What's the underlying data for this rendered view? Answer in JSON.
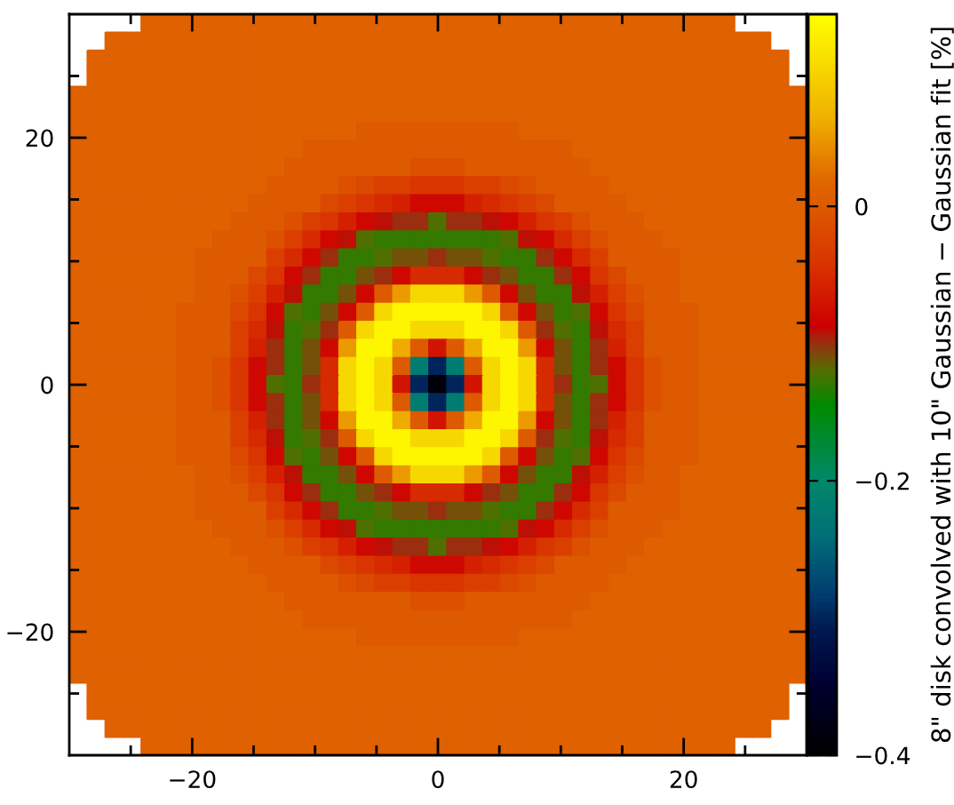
{
  "chart_data": {
    "type": "heatmap",
    "clabel": "8\" disk convolved with 10\" Gaussian − Gaussian fit [%]",
    "xlim": [
      -30,
      30
    ],
    "ylim": [
      -30,
      30
    ],
    "xticks": [
      {
        "value": -25,
        "label": null
      },
      -20,
      {
        "value": -15,
        "label": null
      },
      {
        "value": -10,
        "label": null
      },
      {
        "value": -5,
        "label": null
      },
      0,
      {
        "value": 5,
        "label": null
      },
      {
        "value": 10,
        "label": null
      },
      {
        "value": 15,
        "label": null
      },
      20,
      {
        "value": 25,
        "label": null
      }
    ],
    "yticks": [
      {
        "value": -25,
        "label": null
      },
      -20,
      {
        "value": -15,
        "label": null
      },
      {
        "value": -10,
        "label": null
      },
      {
        "value": -5,
        "label": null
      },
      0,
      {
        "value": 5,
        "label": null
      },
      {
        "value": 10,
        "label": null
      },
      {
        "value": 15,
        "label": null
      },
      20,
      {
        "value": 25,
        "label": null
      }
    ],
    "clim": [
      -0.4,
      0.14
    ],
    "cticks": [
      0,
      -0.2,
      -0.4
    ],
    "cells": [
      [
        null,
        null,
        null,
        null,
        0.01,
        0.01,
        0.01,
        0.01,
        0.01,
        0.01,
        0.01,
        0.01,
        0.01,
        0.01,
        0.01,
        0.01,
        0.01,
        0.01,
        0.01,
        0.01,
        0.01,
        0.01,
        0.01,
        0.01,
        0.01,
        0.01,
        0.01,
        0.01,
        0.01,
        0.01,
        0.01,
        0.01,
        0.01,
        0.01,
        0.01,
        0.01,
        0.01,
        null,
        null,
        null,
        null
      ],
      [
        null,
        null,
        0.01,
        0.01,
        0.01,
        0.01,
        0.01,
        0.01,
        0.01,
        0.01,
        0.01,
        0.01,
        0.01,
        0.01,
        0.01,
        0.01,
        0.01,
        0.01,
        0.01,
        0.01,
        0.01,
        0.01,
        0.01,
        0.01,
        0.01,
        0.01,
        0.01,
        0.01,
        0.01,
        0.01,
        0.01,
        0.01,
        0.01,
        0.01,
        0.01,
        0.01,
        0.01,
        0.01,
        0.01,
        null,
        null
      ],
      [
        null,
        0.01,
        0.01,
        0.01,
        0.01,
        0.01,
        0.01,
        0.01,
        0.01,
        0.01,
        0.01,
        0.01,
        0.01,
        0.01,
        0.01,
        0.01,
        0.01,
        0.01,
        0.01,
        0.01,
        0.01,
        0.01,
        0.01,
        0.01,
        0.01,
        0.01,
        0.01,
        0.01,
        0.01,
        0.01,
        0.01,
        0.01,
        0.01,
        0.01,
        0.01,
        0.01,
        0.01,
        0.01,
        0.01,
        0.01,
        null
      ],
      [
        null,
        0.01,
        0.01,
        0.01,
        0.01,
        0.01,
        0.01,
        0.01,
        0.01,
        0.01,
        0.01,
        0.01,
        0.01,
        0.01,
        0.01,
        0.01,
        0.01,
        0.01,
        0.01,
        0.01,
        0.01,
        0.01,
        0.01,
        0.01,
        0.01,
        0.01,
        0.01,
        0.01,
        0.01,
        0.01,
        0.01,
        0.01,
        0.01,
        0.01,
        0.01,
        0.01,
        0.01,
        0.01,
        0.01,
        0.01,
        null
      ],
      [
        0.01,
        0.01,
        0.01,
        0.01,
        0.01,
        0.01,
        0.01,
        0.01,
        0.01,
        0.01,
        0.01,
        0.01,
        0.01,
        0.01,
        0.01,
        0.01,
        0.01,
        0.01,
        0.01,
        0.01,
        0.01,
        0.01,
        0.01,
        0.01,
        0.01,
        0.01,
        0.01,
        0.01,
        0.01,
        0.01,
        0.01,
        0.01,
        0.01,
        0.01,
        0.01,
        0.01,
        0.01,
        0.01,
        0.01,
        0.01,
        0.01
      ],
      [
        0.01,
        0.01,
        0.01,
        0.01,
        0.01,
        0.01,
        0.01,
        0.01,
        0.01,
        0.01,
        0.01,
        0.01,
        0.01,
        0.01,
        0.01,
        0.01,
        0.01,
        0.01,
        0.01,
        0.01,
        0.01,
        0.01,
        0.01,
        0.01,
        0.01,
        0.01,
        0.01,
        0.01,
        0.01,
        0.01,
        0.01,
        0.01,
        0.01,
        0.01,
        0.01,
        0.01,
        0.01,
        0.01,
        0.01,
        0.01,
        0.01
      ],
      [
        0.01,
        0.01,
        0.01,
        0.01,
        0.01,
        0.01,
        0.01,
        0.01,
        0.01,
        0.01,
        0.01,
        0.01,
        0.01,
        0.01,
        0.01,
        0.01,
        0,
        0,
        0,
        0,
        0,
        0,
        0,
        0,
        0,
        0.01,
        0.01,
        0.01,
        0.01,
        0.01,
        0.01,
        0.01,
        0.01,
        0.01,
        0.01,
        0.01,
        0.01,
        0.01,
        0.01,
        0.01,
        0.01
      ],
      [
        0.01,
        0.01,
        0.01,
        0.01,
        0.01,
        0.01,
        0.01,
        0.01,
        0.01,
        0.01,
        0.01,
        0.01,
        0.01,
        0,
        0,
        0,
        0,
        0,
        0,
        0,
        0,
        0,
        0,
        0,
        0,
        0,
        0,
        0,
        0.01,
        0.01,
        0.01,
        0.01,
        0.01,
        0.01,
        0.01,
        0.01,
        0.01,
        0.01,
        0.01,
        0.01,
        0.01
      ],
      [
        0.01,
        0.01,
        0.01,
        0.01,
        0.01,
        0.01,
        0.01,
        0.01,
        0.01,
        0.01,
        0.01,
        0.01,
        0,
        0,
        0,
        0,
        0,
        0,
        0,
        -0.01,
        -0.01,
        -0.01,
        0,
        0,
        0,
        0,
        0,
        0,
        0,
        0.01,
        0.01,
        0.01,
        0.01,
        0.01,
        0.01,
        0.01,
        0.01,
        0.01,
        0.01,
        0.01,
        0.01
      ],
      [
        0.01,
        0.01,
        0.01,
        0.01,
        0.01,
        0.01,
        0.01,
        0.01,
        0.01,
        0.01,
        0.01,
        0,
        0,
        0,
        0,
        -0.01,
        -0.02,
        -0.03,
        -0.03,
        -0.04,
        -0.04,
        -0.04,
        -0.03,
        -0.03,
        -0.02,
        -0.01,
        0,
        0,
        0,
        0,
        0.01,
        0.01,
        0.01,
        0.01,
        0.01,
        0.01,
        0.01,
        0.01,
        0.01,
        0.01,
        0.01
      ],
      [
        0.01,
        0.01,
        0.01,
        0.01,
        0.01,
        0.01,
        0.01,
        0.01,
        0.01,
        0.01,
        0,
        0,
        0,
        0,
        -0.02,
        -0.03,
        -0.04,
        -0.05,
        -0.06,
        -0.08,
        -0.08,
        -0.08,
        -0.06,
        -0.05,
        -0.04,
        -0.03,
        -0.02,
        0,
        0,
        0,
        0,
        0.01,
        0.01,
        0.01,
        0.01,
        0.01,
        0.01,
        0.01,
        0.01,
        0.01,
        0.01
      ],
      [
        0.01,
        0.01,
        0.01,
        0.01,
        0.01,
        0.01,
        0.01,
        0.01,
        0.01,
        0,
        0,
        0,
        -0.01,
        -0.03,
        -0.04,
        -0.06,
        -0.08,
        -0.09,
        -0.1,
        -0.1,
        -0.12,
        -0.1,
        -0.1,
        -0.09,
        -0.08,
        -0.06,
        -0.04,
        -0.03,
        -0.01,
        0,
        0,
        0,
        0.01,
        0.01,
        0.01,
        0.01,
        0.01,
        0.01,
        0.01,
        0.01,
        0.01
      ],
      [
        0.01,
        0.01,
        0.01,
        0.01,
        0.01,
        0.01,
        0.01,
        0.01,
        0,
        0,
        0,
        -0.01,
        -0.03,
        -0.05,
        -0.08,
        -0.09,
        -0.12,
        -0.13,
        -0.13,
        -0.13,
        -0.13,
        -0.13,
        -0.13,
        -0.13,
        -0.12,
        -0.09,
        -0.08,
        -0.05,
        -0.03,
        -0.01,
        0,
        0,
        0,
        0.01,
        0.01,
        0.01,
        0.01,
        0.01,
        0.01,
        0.01,
        0.01
      ],
      [
        0.01,
        0.01,
        0.01,
        0.01,
        0.01,
        0.01,
        0.01,
        0,
        0,
        0,
        0,
        -0.03,
        -0.05,
        -0.08,
        -0.1,
        -0.13,
        -0.13,
        -0.12,
        -0.11,
        -0.11,
        -0.1,
        -0.11,
        -0.11,
        -0.12,
        -0.13,
        -0.13,
        -0.1,
        -0.08,
        -0.05,
        -0.03,
        0,
        0,
        0,
        0,
        0.01,
        0.01,
        0.01,
        0.01,
        0.01,
        0.01,
        0.01
      ],
      [
        0.01,
        0.01,
        0.01,
        0.01,
        0.01,
        0.01,
        0.01,
        0,
        0,
        0,
        -0.02,
        -0.04,
        -0.08,
        -0.1,
        -0.13,
        -0.13,
        -0.11,
        -0.1,
        -0.08,
        -0.05,
        -0.05,
        -0.05,
        -0.08,
        -0.1,
        -0.11,
        -0.13,
        -0.13,
        -0.1,
        -0.08,
        -0.04,
        -0.02,
        0,
        0,
        0,
        0.01,
        0.01,
        0.01,
        0.01,
        0.01,
        0.01,
        0.01
      ],
      [
        0.01,
        0.01,
        0.01,
        0.01,
        0.01,
        0.01,
        0.01,
        0,
        0,
        -0.01,
        -0.03,
        -0.06,
        -0.09,
        -0.13,
        -0.13,
        -0.11,
        -0.08,
        0,
        0.05,
        0.1,
        0.1,
        0.1,
        0.05,
        0,
        -0.08,
        -0.11,
        -0.13,
        -0.13,
        -0.09,
        -0.06,
        -0.03,
        -0.01,
        0,
        0,
        0.01,
        0.01,
        0.01,
        0.01,
        0.01,
        0.01,
        0.01
      ],
      [
        0.01,
        0.01,
        0.01,
        0.01,
        0.01,
        0.01,
        0,
        0,
        0,
        -0.02,
        -0.04,
        -0.08,
        -0.12,
        -0.13,
        -0.11,
        -0.08,
        0,
        0.1,
        0.13,
        0.13,
        0.13,
        0.13,
        0.13,
        0.1,
        0,
        -0.08,
        -0.11,
        -0.13,
        -0.12,
        -0.08,
        -0.04,
        -0.02,
        0,
        0,
        0,
        0.01,
        0.01,
        0.01,
        0.01,
        0.01,
        0.01
      ],
      [
        0.01,
        0.01,
        0.01,
        0.01,
        0.01,
        0.01,
        0,
        0,
        0,
        -0.03,
        -0.05,
        -0.09,
        -0.13,
        -0.12,
        -0.1,
        0,
        0.1,
        0.13,
        0.13,
        0.1,
        0.1,
        0.1,
        0.13,
        0.13,
        0.1,
        0,
        -0.1,
        -0.12,
        -0.13,
        -0.09,
        -0.05,
        -0.03,
        0,
        0,
        0,
        0.01,
        0.01,
        0.01,
        0.01,
        0.01,
        0.01
      ],
      [
        0.01,
        0.01,
        0.01,
        0.01,
        0.01,
        0.01,
        0,
        0,
        0,
        -0.03,
        -0.06,
        -0.1,
        -0.13,
        -0.11,
        -0.08,
        0.05,
        0.13,
        0.13,
        0.06,
        0,
        -0.07,
        0,
        0.06,
        0.13,
        0.13,
        0.05,
        -0.08,
        -0.11,
        -0.13,
        -0.1,
        -0.06,
        -0.03,
        0,
        0,
        0,
        0.01,
        0.01,
        0.01,
        0.01,
        0.01,
        0.01
      ],
      [
        0.01,
        0.01,
        0.01,
        0.01,
        0.01,
        0.01,
        0,
        0,
        -0.01,
        -0.04,
        -0.08,
        -0.1,
        -0.13,
        -0.11,
        -0.05,
        0.1,
        0.13,
        0.1,
        0,
        -0.22,
        -0.3,
        -0.22,
        0,
        0.1,
        0.13,
        0.1,
        -0.05,
        -0.11,
        -0.13,
        -0.1,
        -0.08,
        -0.04,
        -0.01,
        0,
        0,
        0.01,
        0.01,
        0.01,
        0.01,
        0.01,
        0.01
      ],
      [
        0.01,
        0.01,
        0.01,
        0.01,
        0.01,
        0.01,
        0,
        0,
        -0.01,
        -0.04,
        -0.08,
        -0.12,
        -0.13,
        -0.1,
        -0.05,
        0.1,
        0.13,
        0.1,
        -0.07,
        -0.3,
        -0.39,
        -0.3,
        -0.07,
        0.1,
        0.13,
        0.1,
        -0.05,
        -0.1,
        -0.13,
        -0.12,
        -0.08,
        -0.04,
        -0.01,
        0,
        0,
        0.01,
        0.01,
        0.01,
        0.01,
        0.01,
        0.01
      ],
      [
        0.01,
        0.01,
        0.01,
        0.01,
        0.01,
        0.01,
        0,
        0,
        -0.01,
        -0.04,
        -0.08,
        -0.1,
        -0.13,
        -0.11,
        -0.05,
        0.1,
        0.13,
        0.1,
        0,
        -0.22,
        -0.3,
        -0.22,
        0,
        0.1,
        0.13,
        0.1,
        -0.05,
        -0.11,
        -0.13,
        -0.1,
        -0.08,
        -0.04,
        -0.01,
        0,
        0,
        0.01,
        0.01,
        0.01,
        0.01,
        0.01,
        0.01
      ],
      [
        0.01,
        0.01,
        0.01,
        0.01,
        0.01,
        0.01,
        0,
        0,
        0,
        -0.03,
        -0.06,
        -0.1,
        -0.13,
        -0.11,
        -0.08,
        0.05,
        0.13,
        0.13,
        0.06,
        0,
        -0.07,
        0,
        0.06,
        0.13,
        0.13,
        0.05,
        -0.08,
        -0.11,
        -0.13,
        -0.1,
        -0.06,
        -0.03,
        0,
        0,
        0,
        0.01,
        0.01,
        0.01,
        0.01,
        0.01,
        0.01
      ],
      [
        0.01,
        0.01,
        0.01,
        0.01,
        0.01,
        0.01,
        0,
        0,
        0,
        -0.03,
        -0.05,
        -0.09,
        -0.13,
        -0.12,
        -0.1,
        0,
        0.1,
        0.13,
        0.13,
        0.1,
        0.1,
        0.1,
        0.13,
        0.13,
        0.1,
        0,
        -0.1,
        -0.12,
        -0.13,
        -0.09,
        -0.05,
        -0.03,
        0,
        0,
        0,
        0.01,
        0.01,
        0.01,
        0.01,
        0.01,
        0.01
      ],
      [
        0.01,
        0.01,
        0.01,
        0.01,
        0.01,
        0.01,
        0,
        0,
        0,
        -0.02,
        -0.04,
        -0.08,
        -0.12,
        -0.13,
        -0.11,
        -0.08,
        0,
        0.1,
        0.13,
        0.13,
        0.13,
        0.13,
        0.13,
        0.1,
        0,
        -0.08,
        -0.11,
        -0.13,
        -0.12,
        -0.08,
        -0.04,
        -0.02,
        0,
        0,
        0,
        0.01,
        0.01,
        0.01,
        0.01,
        0.01,
        0.01
      ],
      [
        0.01,
        0.01,
        0.01,
        0.01,
        0.01,
        0.01,
        0.01,
        0,
        0,
        -0.01,
        -0.03,
        -0.06,
        -0.09,
        -0.13,
        -0.13,
        -0.11,
        -0.08,
        0,
        0.05,
        0.1,
        0.1,
        0.1,
        0.05,
        0,
        -0.08,
        -0.11,
        -0.13,
        -0.13,
        -0.09,
        -0.06,
        -0.03,
        -0.01,
        0,
        0,
        0.01,
        0.01,
        0.01,
        0.01,
        0.01,
        0.01,
        0.01
      ],
      [
        0.01,
        0.01,
        0.01,
        0.01,
        0.01,
        0.01,
        0.01,
        0,
        0,
        0,
        -0.02,
        -0.04,
        -0.08,
        -0.1,
        -0.13,
        -0.13,
        -0.11,
        -0.1,
        -0.08,
        -0.05,
        -0.05,
        -0.05,
        -0.08,
        -0.1,
        -0.11,
        -0.13,
        -0.13,
        -0.1,
        -0.08,
        -0.04,
        -0.02,
        0,
        0,
        0,
        0.01,
        0.01,
        0.01,
        0.01,
        0.01,
        0.01,
        0.01
      ],
      [
        0.01,
        0.01,
        0.01,
        0.01,
        0.01,
        0.01,
        0.01,
        0,
        0,
        0,
        0,
        -0.03,
        -0.05,
        -0.08,
        -0.1,
        -0.13,
        -0.13,
        -0.12,
        -0.11,
        -0.11,
        -0.1,
        -0.11,
        -0.11,
        -0.12,
        -0.13,
        -0.13,
        -0.1,
        -0.08,
        -0.05,
        -0.03,
        0,
        0,
        0,
        0,
        0.01,
        0.01,
        0.01,
        0.01,
        0.01,
        0.01,
        0.01
      ],
      [
        0.01,
        0.01,
        0.01,
        0.01,
        0.01,
        0.01,
        0.01,
        0.01,
        0,
        0,
        0,
        -0.01,
        -0.03,
        -0.05,
        -0.08,
        -0.09,
        -0.12,
        -0.13,
        -0.13,
        -0.13,
        -0.13,
        -0.13,
        -0.13,
        -0.13,
        -0.12,
        -0.09,
        -0.08,
        -0.05,
        -0.03,
        -0.01,
        0,
        0,
        0,
        0.01,
        0.01,
        0.01,
        0.01,
        0.01,
        0.01,
        0.01,
        0.01
      ],
      [
        0.01,
        0.01,
        0.01,
        0.01,
        0.01,
        0.01,
        0.01,
        0.01,
        0.01,
        0,
        0,
        0,
        -0.01,
        -0.03,
        -0.04,
        -0.06,
        -0.08,
        -0.09,
        -0.1,
        -0.1,
        -0.12,
        -0.1,
        -0.1,
        -0.09,
        -0.08,
        -0.06,
        -0.04,
        -0.03,
        -0.01,
        0,
        0,
        0,
        0.01,
        0.01,
        0.01,
        0.01,
        0.01,
        0.01,
        0.01,
        0.01,
        0.01
      ],
      [
        0.01,
        0.01,
        0.01,
        0.01,
        0.01,
        0.01,
        0.01,
        0.01,
        0.01,
        0.01,
        0,
        0,
        0,
        0,
        -0.02,
        -0.03,
        -0.04,
        -0.05,
        -0.06,
        -0.08,
        -0.08,
        -0.08,
        -0.06,
        -0.05,
        -0.04,
        -0.03,
        -0.02,
        0,
        0,
        0,
        0,
        0.01,
        0.01,
        0.01,
        0.01,
        0.01,
        0.01,
        0.01,
        0.01,
        0.01,
        0.01
      ],
      [
        0.01,
        0.01,
        0.01,
        0.01,
        0.01,
        0.01,
        0.01,
        0.01,
        0.01,
        0.01,
        0.01,
        0,
        0,
        0,
        0,
        -0.01,
        -0.02,
        -0.03,
        -0.03,
        -0.04,
        -0.04,
        -0.04,
        -0.03,
        -0.03,
        -0.02,
        -0.01,
        0,
        0,
        0,
        0,
        0.01,
        0.01,
        0.01,
        0.01,
        0.01,
        0.01,
        0.01,
        0.01,
        0.01,
        0.01,
        0.01
      ],
      [
        0.01,
        0.01,
        0.01,
        0.01,
        0.01,
        0.01,
        0.01,
        0.01,
        0.01,
        0.01,
        0.01,
        0.01,
        0,
        0,
        0,
        0,
        0,
        0,
        0,
        -0.01,
        -0.01,
        -0.01,
        0,
        0,
        0,
        0,
        0,
        0,
        0,
        0.01,
        0.01,
        0.01,
        0.01,
        0.01,
        0.01,
        0.01,
        0.01,
        0.01,
        0.01,
        0.01,
        0.01
      ],
      [
        0.01,
        0.01,
        0.01,
        0.01,
        0.01,
        0.01,
        0.01,
        0.01,
        0.01,
        0.01,
        0.01,
        0.01,
        0.01,
        0,
        0,
        0,
        0,
        0,
        0,
        0,
        0,
        0,
        0,
        0,
        0,
        0,
        0,
        0,
        0.01,
        0.01,
        0.01,
        0.01,
        0.01,
        0.01,
        0.01,
        0.01,
        0.01,
        0.01,
        0.01,
        0.01,
        0.01
      ],
      [
        0.01,
        0.01,
        0.01,
        0.01,
        0.01,
        0.01,
        0.01,
        0.01,
        0.01,
        0.01,
        0.01,
        0.01,
        0.01,
        0.01,
        0.01,
        0.01,
        0,
        0,
        0,
        0,
        0,
        0,
        0,
        0,
        0,
        0.01,
        0.01,
        0.01,
        0.01,
        0.01,
        0.01,
        0.01,
        0.01,
        0.01,
        0.01,
        0.01,
        0.01,
        0.01,
        0.01,
        0.01,
        0.01
      ],
      [
        0.01,
        0.01,
        0.01,
        0.01,
        0.01,
        0.01,
        0.01,
        0.01,
        0.01,
        0.01,
        0.01,
        0.01,
        0.01,
        0.01,
        0.01,
        0.01,
        0.01,
        0.01,
        0.01,
        0.01,
        0.01,
        0.01,
        0.01,
        0.01,
        0.01,
        0.01,
        0.01,
        0.01,
        0.01,
        0.01,
        0.01,
        0.01,
        0.01,
        0.01,
        0.01,
        0.01,
        0.01,
        0.01,
        0.01,
        0.01,
        0.01
      ],
      [
        0.01,
        0.01,
        0.01,
        0.01,
        0.01,
        0.01,
        0.01,
        0.01,
        0.01,
        0.01,
        0.01,
        0.01,
        0.01,
        0.01,
        0.01,
        0.01,
        0.01,
        0.01,
        0.01,
        0.01,
        0.01,
        0.01,
        0.01,
        0.01,
        0.01,
        0.01,
        0.01,
        0.01,
        0.01,
        0.01,
        0.01,
        0.01,
        0.01,
        0.01,
        0.01,
        0.01,
        0.01,
        0.01,
        0.01,
        0.01,
        0.01
      ],
      [
        null,
        0.01,
        0.01,
        0.01,
        0.01,
        0.01,
        0.01,
        0.01,
        0.01,
        0.01,
        0.01,
        0.01,
        0.01,
        0.01,
        0.01,
        0.01,
        0.01,
        0.01,
        0.01,
        0.01,
        0.01,
        0.01,
        0.01,
        0.01,
        0.01,
        0.01,
        0.01,
        0.01,
        0.01,
        0.01,
        0.01,
        0.01,
        0.01,
        0.01,
        0.01,
        0.01,
        0.01,
        0.01,
        0.01,
        0.01,
        null
      ],
      [
        null,
        0.01,
        0.01,
        0.01,
        0.01,
        0.01,
        0.01,
        0.01,
        0.01,
        0.01,
        0.01,
        0.01,
        0.01,
        0.01,
        0.01,
        0.01,
        0.01,
        0.01,
        0.01,
        0.01,
        0.01,
        0.01,
        0.01,
        0.01,
        0.01,
        0.01,
        0.01,
        0.01,
        0.01,
        0.01,
        0.01,
        0.01,
        0.01,
        0.01,
        0.01,
        0.01,
        0.01,
        0.01,
        0.01,
        0.01,
        null
      ],
      [
        null,
        null,
        0.01,
        0.01,
        0.01,
        0.01,
        0.01,
        0.01,
        0.01,
        0.01,
        0.01,
        0.01,
        0.01,
        0.01,
        0.01,
        0.01,
        0.01,
        0.01,
        0.01,
        0.01,
        0.01,
        0.01,
        0.01,
        0.01,
        0.01,
        0.01,
        0.01,
        0.01,
        0.01,
        0.01,
        0.01,
        0.01,
        0.01,
        0.01,
        0.01,
        0.01,
        0.01,
        0.01,
        0.01,
        null,
        null
      ],
      [
        null,
        null,
        null,
        null,
        0.01,
        0.01,
        0.01,
        0.01,
        0.01,
        0.01,
        0.01,
        0.01,
        0.01,
        0.01,
        0.01,
        0.01,
        0.01,
        0.01,
        0.01,
        0.01,
        0.01,
        0.01,
        0.01,
        0.01,
        0.01,
        0.01,
        0.01,
        0.01,
        0.01,
        0.01,
        0.01,
        0.01,
        0.01,
        0.01,
        0.01,
        0.01,
        0.01,
        null,
        null,
        null,
        null
      ]
    ]
  }
}
